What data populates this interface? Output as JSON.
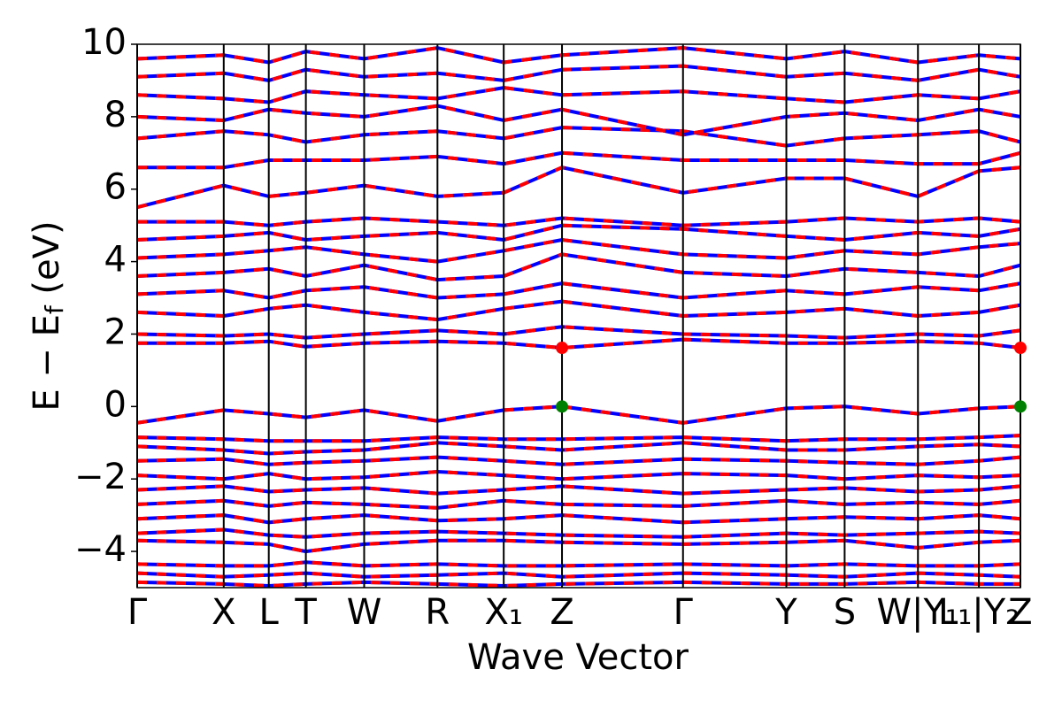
{
  "chart_data": {
    "type": "band_structure",
    "xlabel": "Wave Vector",
    "ylabel": [
      "E − E",
      "f",
      " (eV)"
    ],
    "xlim": [
      0,
      10
    ],
    "ylim": [
      -5,
      10
    ],
    "yticks": [
      {
        "value": -4,
        "label": "−4"
      },
      {
        "value": -2,
        "label": "−2"
      },
      0,
      2,
      4,
      6,
      8,
      10
    ],
    "xticks": [
      {
        "value": 0,
        "label": "Γ"
      },
      {
        "value": 0.98,
        "label": "X"
      },
      {
        "value": 1.49,
        "label": "L"
      },
      {
        "value": 1.91,
        "label": "T"
      },
      {
        "value": 2.57,
        "label": "W"
      },
      {
        "value": 3.4,
        "label": "R"
      },
      {
        "value": 4.15,
        "label": "X₁"
      },
      {
        "value": 4.81,
        "label": "Z"
      },
      {
        "value": 6.18,
        "label": "Γ"
      },
      {
        "value": 7.35,
        "label": "Y"
      },
      {
        "value": 8.01,
        "label": "S"
      },
      {
        "value": 8.84,
        "label": "W|Y₁"
      },
      {
        "value": 9.53,
        "label": "L₁|Y₂"
      },
      {
        "value": 10,
        "label": "Z"
      }
    ],
    "colors": [
      "#0000ff",
      "#ff0000"
    ],
    "x": [
      0,
      0.98,
      1.49,
      1.91,
      2.57,
      3.4,
      4.15,
      4.81,
      6.18,
      7.35,
      8.01,
      8.84,
      9.53,
      10
    ],
    "series": [
      {
        "values": [
          -0.45,
          -0.1,
          -0.2,
          -0.3,
          -0.1,
          -0.4,
          -0.1,
          0,
          -0.45,
          -0.05,
          0,
          -0.2,
          -0.05,
          0
        ]
      },
      {
        "values": [
          -0.85,
          -0.9,
          -0.95,
          -0.95,
          -0.95,
          -0.85,
          -0.9,
          -0.9,
          -0.85,
          -0.95,
          -0.9,
          -0.9,
          -0.85,
          -0.8
        ]
      },
      {
        "values": [
          -1.1,
          -1.2,
          -1.3,
          -1.25,
          -1.2,
          -1.0,
          -1.1,
          -1.2,
          -1.0,
          -1.2,
          -1.2,
          -1.1,
          -1.05,
          -1.1
        ]
      },
      {
        "values": [
          -1.5,
          -1.45,
          -1.6,
          -1.55,
          -1.5,
          -1.4,
          -1.5,
          -1.6,
          -1.45,
          -1.5,
          -1.55,
          -1.6,
          -1.5,
          -1.4
        ]
      },
      {
        "values": [
          -1.9,
          -2.0,
          -1.85,
          -2.0,
          -1.95,
          -1.8,
          -1.9,
          -2.0,
          -1.85,
          -1.9,
          -2.0,
          -1.9,
          -1.95,
          -1.9
        ]
      },
      {
        "values": [
          -2.3,
          -2.2,
          -2.35,
          -2.3,
          -2.25,
          -2.4,
          -2.3,
          -2.2,
          -2.4,
          -2.3,
          -2.25,
          -2.35,
          -2.3,
          -2.2
        ]
      },
      {
        "values": [
          -2.7,
          -2.6,
          -2.75,
          -2.65,
          -2.7,
          -2.8,
          -2.6,
          -2.7,
          -2.75,
          -2.6,
          -2.7,
          -2.65,
          -2.7,
          -2.6
        ]
      },
      {
        "values": [
          -3.1,
          -3.0,
          -3.2,
          -3.1,
          -3.0,
          -3.15,
          -3.1,
          -3.0,
          -3.2,
          -3.1,
          -3.05,
          -3.1,
          -3.0,
          -3.1
        ]
      },
      {
        "values": [
          -3.5,
          -3.4,
          -3.55,
          -3.6,
          -3.5,
          -3.45,
          -3.5,
          -3.55,
          -3.6,
          -3.5,
          -3.55,
          -3.5,
          -3.45,
          -3.5
        ]
      },
      {
        "values": [
          -3.7,
          -3.75,
          -3.8,
          -4.0,
          -3.8,
          -3.7,
          -3.7,
          -3.75,
          -3.8,
          -3.75,
          -3.7,
          -3.9,
          -3.75,
          -3.7
        ]
      },
      {
        "values": [
          -4.35,
          -4.4,
          -4.4,
          -4.3,
          -4.4,
          -4.35,
          -4.4,
          -4.4,
          -4.35,
          -4.4,
          -4.35,
          -4.4,
          -4.4,
          -4.35
        ]
      },
      {
        "values": [
          -4.6,
          -4.7,
          -4.65,
          -4.6,
          -4.7,
          -4.65,
          -4.6,
          -4.7,
          -4.6,
          -4.65,
          -4.7,
          -4.6,
          -4.65,
          -4.7
        ]
      },
      {
        "values": [
          -4.85,
          -4.9,
          -4.95,
          -4.9,
          -4.85,
          -4.9,
          -4.95,
          -4.9,
          -4.85,
          -4.9,
          -4.9,
          -4.85,
          -4.9,
          -4.9
        ]
      },
      {
        "values": [
          1.75,
          1.75,
          1.8,
          1.65,
          1.75,
          1.8,
          1.75,
          1.62,
          1.85,
          1.75,
          1.75,
          1.8,
          1.75,
          1.62
        ]
      },
      {
        "values": [
          2.0,
          1.95,
          2.0,
          1.9,
          2.0,
          2.1,
          2.0,
          2.2,
          2.0,
          1.95,
          1.9,
          2.0,
          1.95,
          2.1
        ]
      },
      {
        "values": [
          2.6,
          2.5,
          2.7,
          2.8,
          2.6,
          2.4,
          2.7,
          2.9,
          2.5,
          2.6,
          2.7,
          2.5,
          2.6,
          2.8
        ]
      },
      {
        "values": [
          3.1,
          3.2,
          3.0,
          3.2,
          3.3,
          3.0,
          3.1,
          3.4,
          3.0,
          3.2,
          3.1,
          3.3,
          3.2,
          3.4
        ]
      },
      {
        "values": [
          3.6,
          3.7,
          3.8,
          3.6,
          3.9,
          3.5,
          3.6,
          4.2,
          3.7,
          3.6,
          3.8,
          3.7,
          3.6,
          3.9
        ]
      },
      {
        "values": [
          4.1,
          4.2,
          4.3,
          4.4,
          4.2,
          4.0,
          4.3,
          4.6,
          4.2,
          4.1,
          4.3,
          4.2,
          4.4,
          4.5
        ]
      },
      {
        "values": [
          4.6,
          4.7,
          4.8,
          4.6,
          4.7,
          4.8,
          4.6,
          5.0,
          4.9,
          4.7,
          4.6,
          4.8,
          4.7,
          4.9
        ]
      },
      {
        "values": [
          5.1,
          5.1,
          5.0,
          5.1,
          5.2,
          5.1,
          5.0,
          5.2,
          5.0,
          5.1,
          5.2,
          5.1,
          5.2,
          5.1
        ]
      },
      {
        "values": [
          5.5,
          6.1,
          5.8,
          5.9,
          6.1,
          5.8,
          5.9,
          6.6,
          5.9,
          6.3,
          6.3,
          5.8,
          6.5,
          6.6
        ]
      },
      {
        "values": [
          6.6,
          6.6,
          6.8,
          6.8,
          6.8,
          6.9,
          6.7,
          7.0,
          6.8,
          6.8,
          6.8,
          6.7,
          6.7,
          7.0
        ]
      },
      {
        "values": [
          7.4,
          7.6,
          7.5,
          7.3,
          7.5,
          7.6,
          7.4,
          7.7,
          7.6,
          7.2,
          7.4,
          7.5,
          7.6,
          7.3
        ]
      },
      {
        "values": [
          8.0,
          7.9,
          8.2,
          8.1,
          8.0,
          8.3,
          7.9,
          8.2,
          7.5,
          8.0,
          8.1,
          7.9,
          8.2,
          8.0
        ]
      },
      {
        "values": [
          8.6,
          8.5,
          8.4,
          8.7,
          8.6,
          8.5,
          8.8,
          8.6,
          8.7,
          8.5,
          8.4,
          8.6,
          8.5,
          8.7
        ]
      },
      {
        "values": [
          9.1,
          9.2,
          9.0,
          9.3,
          9.1,
          9.2,
          9.0,
          9.3,
          9.4,
          9.1,
          9.2,
          9.0,
          9.3,
          9.1
        ]
      },
      {
        "values": [
          9.6,
          9.7,
          9.5,
          9.8,
          9.6,
          9.9,
          9.5,
          9.7,
          9.9,
          9.6,
          9.8,
          9.5,
          9.7,
          9.6
        ]
      }
    ],
    "markers": [
      {
        "color": "#008000",
        "x": [
          4.81,
          10
        ],
        "y": [
          0,
          0
        ]
      },
      {
        "color": "#ff0000",
        "x": [
          4.81,
          10
        ],
        "y": [
          1.62,
          1.62
        ]
      }
    ]
  }
}
